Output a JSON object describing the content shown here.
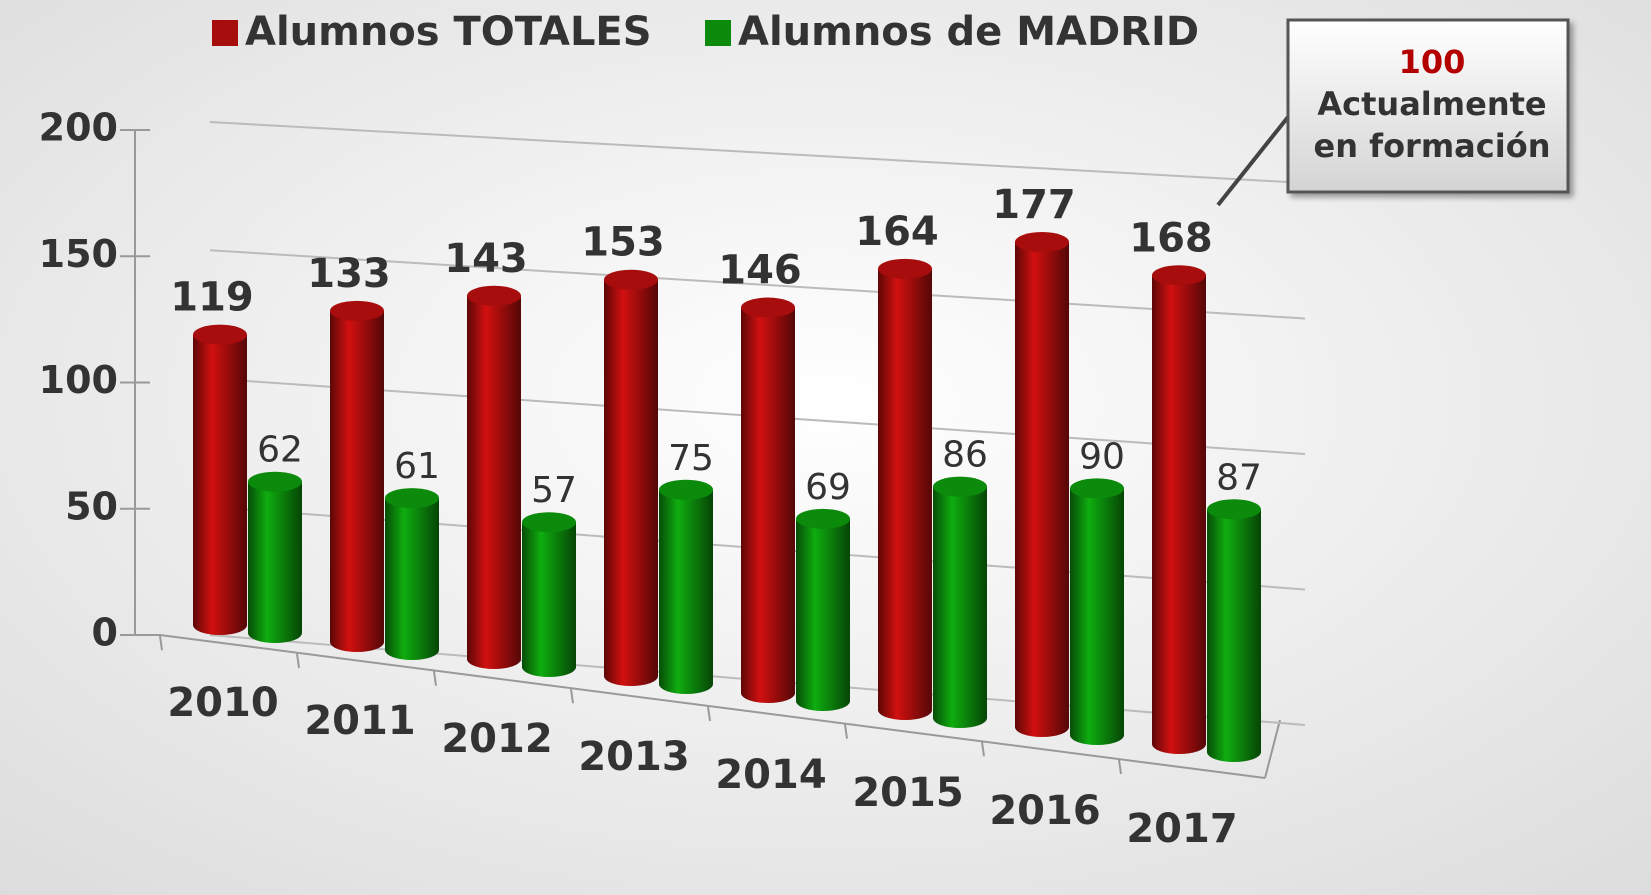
{
  "chart_data": {
    "type": "bar3d",
    "categories": [
      "2010",
      "2011",
      "2012",
      "2013",
      "2014",
      "2015",
      "2016",
      "2017"
    ],
    "series": [
      {
        "name": "Alumnos TOTALES",
        "color": "#a80d0d",
        "values": [
          119,
          133,
          143,
          153,
          146,
          164,
          177,
          168
        ]
      },
      {
        "name": "Alumnos de MADRID",
        "color": "#0c8a0c",
        "values": [
          62,
          61,
          57,
          75,
          69,
          86,
          90,
          87
        ]
      }
    ],
    "ylim": [
      0,
      200
    ],
    "yticks": [
      0,
      50,
      100,
      150,
      200
    ],
    "grid": true,
    "annotation": {
      "value": "100",
      "lines": [
        "Actualmente",
        "en formación"
      ]
    }
  }
}
